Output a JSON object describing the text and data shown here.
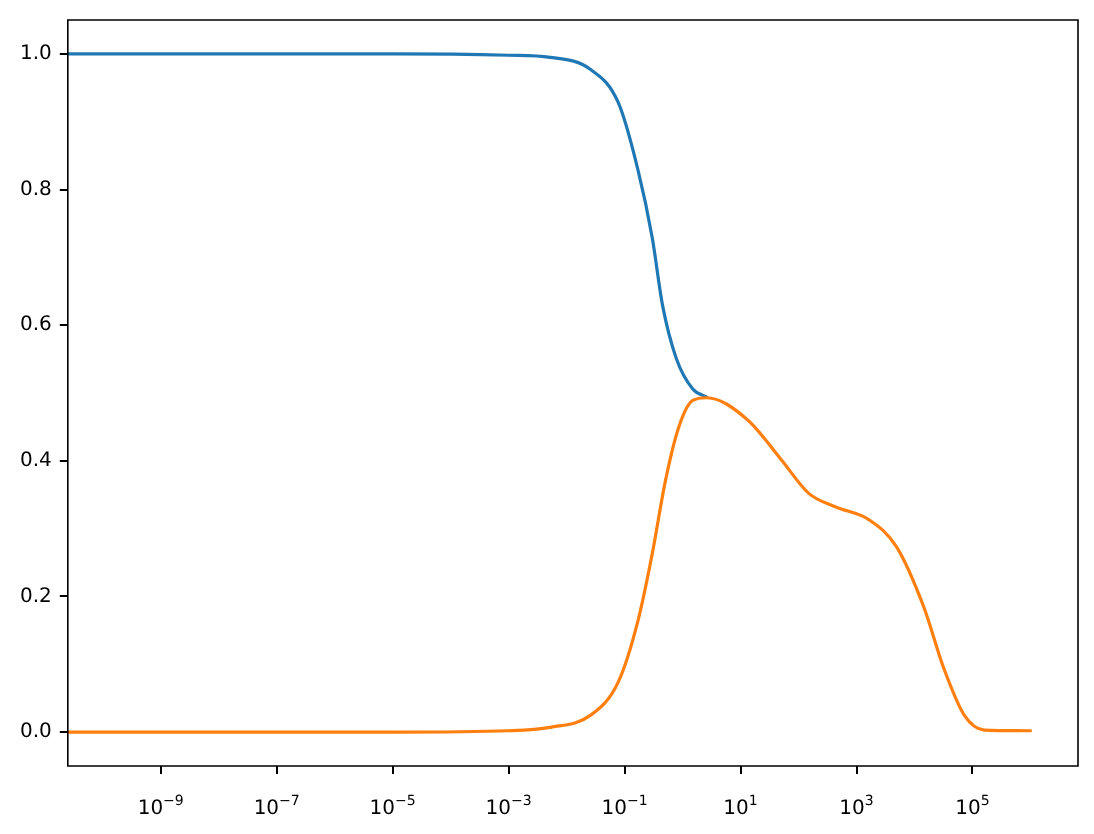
{
  "chart_data": {
    "type": "line",
    "log": "x",
    "grid": false,
    "legend": false,
    "marker": "none",
    "line_style": "solid",
    "xlim": [
      2.5e-11,
      6600000.0
    ],
    "ylim": [
      -0.05,
      1.05
    ],
    "xticks": [
      {
        "value": 1e-09,
        "label": "10$^{−9}$"
      },
      {
        "value": 1e-07,
        "label": "10$^{−7}$"
      },
      {
        "value": 1e-05,
        "label": "10$^{−5}$"
      },
      {
        "value": 0.001,
        "label": "10$^{−3}$"
      },
      {
        "value": 0.1,
        "label": "10$^{−1}$"
      },
      {
        "value": 10,
        "label": "10$^{1}$"
      },
      {
        "value": 1000,
        "label": "10$^{3}$"
      },
      {
        "value": 100000,
        "label": "10$^{5}$"
      }
    ],
    "yticks": [
      {
        "value": 0,
        "label": "0.0"
      },
      {
        "value": 0.2,
        "label": "0.2"
      },
      {
        "value": 0.4,
        "label": "0.4"
      },
      {
        "value": 0.6,
        "label": "0.6"
      },
      {
        "value": 0.8,
        "label": "0.8"
      },
      {
        "value": 1,
        "label": "1.0"
      }
    ],
    "series": [
      {
        "color": "#1f77b4",
        "x": [
          2.5e-11,
          1e-08,
          1e-05,
          0.001,
          0.0052,
          0.026,
          0.078,
          0.17,
          0.3,
          0.45,
          0.78,
          1.5,
          2.6
        ],
        "values": [
          1,
          1,
          1,
          0.998,
          0.995,
          0.977,
          0.928,
          0.829,
          0.729,
          0.63,
          0.551,
          0.506,
          0.494
        ]
      },
      {
        "color": "#ff7f0e",
        "x": [
          2.5e-11,
          1e-08,
          1e-05,
          0.001,
          0.0052,
          0.026,
          0.078,
          0.17,
          0.3,
          0.51,
          0.87,
          1.5,
          2.6,
          13,
          50,
          150,
          440,
          1650,
          4900,
          14500,
          32000,
          72000,
          160000,
          1000000.0
        ],
        "values": [
          0,
          0,
          0,
          0.002,
          0.007,
          0.025,
          0.074,
          0.164,
          0.263,
          0.372,
          0.451,
          0.489,
          0.493,
          0.461,
          0.402,
          0.352,
          0.332,
          0.313,
          0.273,
          0.184,
          0.094,
          0.025,
          0.003,
          0.002
        ]
      }
    ]
  }
}
